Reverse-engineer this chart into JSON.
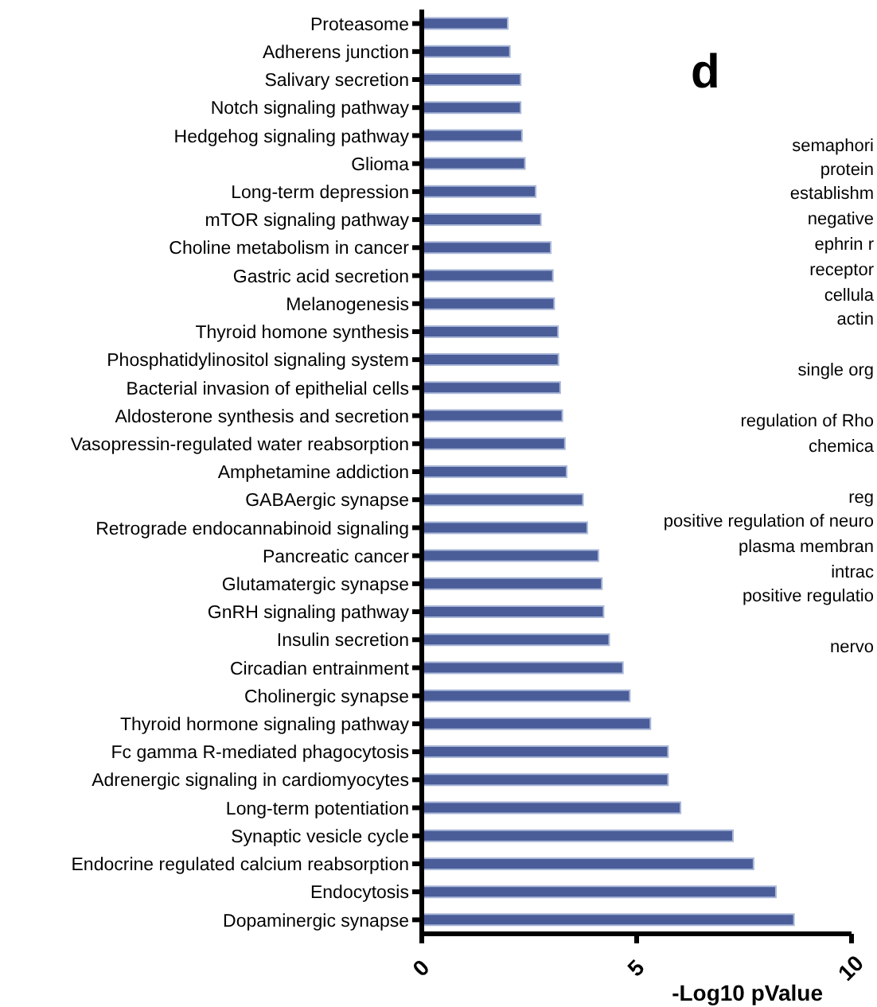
{
  "chart_data": {
    "type": "bar",
    "orientation": "horizontal",
    "xlabel": "-Log10 pValue",
    "categories": [
      "Proteasome",
      "Adherens junction",
      "Salivary secretion",
      "Notch signaling pathway",
      "Hedgehog signaling pathway",
      "Glioma",
      "Long-term depression",
      "mTOR signaling pathway",
      "Choline metabolism in cancer",
      "Gastric acid secretion",
      "Melanogenesis",
      "Thyroid homone synthesis",
      "Phosphatidylinositol signaling system",
      "Bacterial invasion of epithelial cells",
      "Aldosterone synthesis and secretion",
      "Vasopressin-regulated water reabsorption",
      "Amphetamine addiction",
      "GABAergic synapse",
      "Retrograde endocannabinoid signaling",
      "Pancreatic cancer",
      "Glutamatergic synapse",
      "GnRH signaling pathway",
      "Insulin secretion",
      "Circadian entrainment",
      "Cholinergic synapse",
      "Thyroid hormone signaling pathway",
      "Fc gamma R-mediated phagocytosis",
      "Adrenergic signaling in cardiomyocytes",
      "Long-term potentiation",
      "Synaptic vesicle cycle",
      "Endocrine regulated calcium reabsorption",
      "Endocytosis",
      "Dopaminergic synapse"
    ],
    "values": [
      2.0,
      2.05,
      2.3,
      2.3,
      2.33,
      2.4,
      2.65,
      2.77,
      3.0,
      3.05,
      3.08,
      3.17,
      3.18,
      3.22,
      3.27,
      3.33,
      3.37,
      3.75,
      3.85,
      4.11,
      4.19,
      4.23,
      4.36,
      4.68,
      4.84,
      5.32,
      5.73,
      5.73,
      6.02,
      7.24,
      7.72,
      8.24,
      8.66
    ],
    "color": "#4a5d99",
    "xlim": [
      0,
      10
    ],
    "xticks": [
      0,
      5,
      10
    ],
    "grid": false,
    "legend": false,
    "annotations": [
      "d",
      "semaphori",
      "protein",
      "establishm",
      "negative",
      "ephrin r",
      "receptor",
      "cellula",
      "actin",
      "single org",
      "regulation of Rho",
      "chemica",
      "reg",
      "positive regulation of neuro",
      "plasma membran",
      "intrac",
      "positive regulatio",
      "nervo"
    ]
  }
}
